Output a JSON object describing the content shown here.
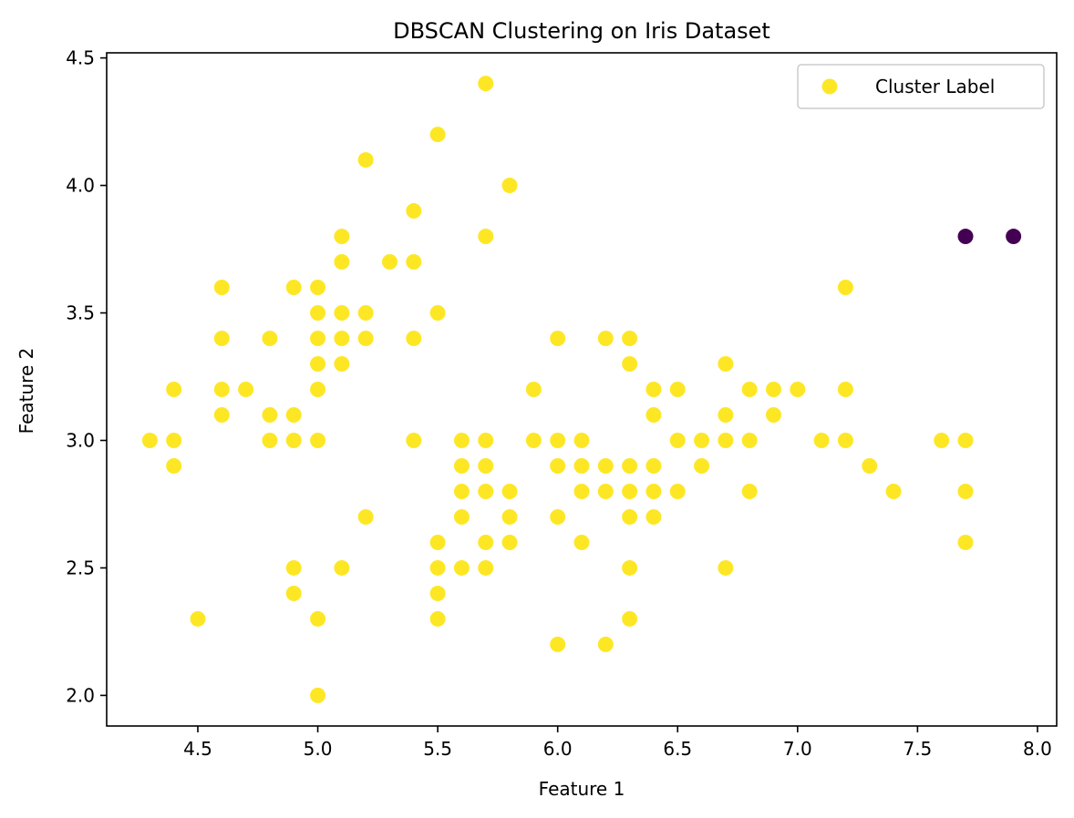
{
  "chart_data": {
    "type": "scatter",
    "title": "DBSCAN Clustering on Iris Dataset",
    "xlabel": "Feature 1",
    "ylabel": "Feature 2",
    "xlim": [
      4.12,
      8.08
    ],
    "ylim": [
      1.88,
      4.52
    ],
    "x_ticks": [
      4.5,
      5.0,
      5.5,
      6.0,
      6.5,
      7.0,
      7.5,
      8.0
    ],
    "x_tick_labels": [
      "4.5",
      "5.0",
      "5.5",
      "6.0",
      "6.5",
      "7.0",
      "7.5",
      "8.0"
    ],
    "y_ticks": [
      2.0,
      2.5,
      3.0,
      3.5,
      4.0,
      4.5
    ],
    "y_tick_labels": [
      "2.0",
      "2.5",
      "3.0",
      "3.5",
      "4.0",
      "4.5"
    ],
    "grid": false,
    "legend": {
      "placement": "upper-right",
      "entries": [
        {
          "label": "Cluster Label",
          "color": "#fde725"
        }
      ]
    },
    "cluster_colors": {
      "0": "#fde725",
      "-1": "#440154"
    },
    "points": [
      [
        4.3,
        3.0,
        0
      ],
      [
        4.4,
        3.2,
        0
      ],
      [
        4.4,
        3.0,
        0
      ],
      [
        4.4,
        2.9,
        0
      ],
      [
        4.5,
        2.3,
        0
      ],
      [
        4.6,
        3.6,
        0
      ],
      [
        4.6,
        3.4,
        0
      ],
      [
        4.6,
        3.2,
        0
      ],
      [
        4.6,
        3.1,
        0
      ],
      [
        4.7,
        3.2,
        0
      ],
      [
        4.8,
        3.4,
        0
      ],
      [
        4.8,
        3.1,
        0
      ],
      [
        4.8,
        3.0,
        0
      ],
      [
        4.9,
        3.6,
        0
      ],
      [
        4.9,
        3.1,
        0
      ],
      [
        4.9,
        3.0,
        0
      ],
      [
        4.9,
        2.5,
        0
      ],
      [
        4.9,
        2.4,
        0
      ],
      [
        5.0,
        3.6,
        0
      ],
      [
        5.0,
        3.5,
        0
      ],
      [
        5.0,
        3.4,
        0
      ],
      [
        5.0,
        3.3,
        0
      ],
      [
        5.0,
        3.2,
        0
      ],
      [
        5.0,
        3.0,
        0
      ],
      [
        5.0,
        2.3,
        0
      ],
      [
        5.0,
        2.0,
        0
      ],
      [
        5.1,
        3.8,
        0
      ],
      [
        5.1,
        3.7,
        0
      ],
      [
        5.1,
        3.5,
        0
      ],
      [
        5.1,
        3.4,
        0
      ],
      [
        5.1,
        3.3,
        0
      ],
      [
        5.1,
        2.5,
        0
      ],
      [
        5.2,
        4.1,
        0
      ],
      [
        5.2,
        3.5,
        0
      ],
      [
        5.2,
        3.4,
        0
      ],
      [
        5.2,
        2.7,
        0
      ],
      [
        5.3,
        3.7,
        0
      ],
      [
        5.4,
        3.9,
        0
      ],
      [
        5.4,
        3.7,
        0
      ],
      [
        5.4,
        3.4,
        0
      ],
      [
        5.4,
        3.0,
        0
      ],
      [
        5.5,
        4.2,
        0
      ],
      [
        5.5,
        3.5,
        0
      ],
      [
        5.5,
        2.6,
        0
      ],
      [
        5.5,
        2.5,
        0
      ],
      [
        5.5,
        2.4,
        0
      ],
      [
        5.5,
        2.3,
        0
      ],
      [
        5.6,
        3.0,
        0
      ],
      [
        5.6,
        2.9,
        0
      ],
      [
        5.6,
        2.8,
        0
      ],
      [
        5.6,
        2.7,
        0
      ],
      [
        5.6,
        2.5,
        0
      ],
      [
        5.7,
        4.4,
        0
      ],
      [
        5.7,
        3.8,
        0
      ],
      [
        5.7,
        3.0,
        0
      ],
      [
        5.7,
        2.9,
        0
      ],
      [
        5.7,
        2.8,
        0
      ],
      [
        5.7,
        2.6,
        0
      ],
      [
        5.7,
        2.5,
        0
      ],
      [
        5.8,
        4.0,
        0
      ],
      [
        5.8,
        2.8,
        0
      ],
      [
        5.8,
        2.7,
        0
      ],
      [
        5.8,
        2.6,
        0
      ],
      [
        5.9,
        3.2,
        0
      ],
      [
        5.9,
        3.0,
        0
      ],
      [
        6.0,
        3.4,
        0
      ],
      [
        6.0,
        3.0,
        0
      ],
      [
        6.0,
        2.9,
        0
      ],
      [
        6.0,
        2.7,
        0
      ],
      [
        6.0,
        2.2,
        0
      ],
      [
        6.1,
        3.0,
        0
      ],
      [
        6.1,
        2.9,
        0
      ],
      [
        6.1,
        2.8,
        0
      ],
      [
        6.1,
        2.6,
        0
      ],
      [
        6.2,
        3.4,
        0
      ],
      [
        6.2,
        2.9,
        0
      ],
      [
        6.2,
        2.8,
        0
      ],
      [
        6.2,
        2.2,
        0
      ],
      [
        6.3,
        3.4,
        0
      ],
      [
        6.3,
        3.3,
        0
      ],
      [
        6.3,
        2.9,
        0
      ],
      [
        6.3,
        2.8,
        0
      ],
      [
        6.3,
        2.7,
        0
      ],
      [
        6.3,
        2.5,
        0
      ],
      [
        6.3,
        2.3,
        0
      ],
      [
        6.4,
        3.2,
        0
      ],
      [
        6.4,
        3.1,
        0
      ],
      [
        6.4,
        2.9,
        0
      ],
      [
        6.4,
        2.8,
        0
      ],
      [
        6.4,
        2.7,
        0
      ],
      [
        6.5,
        3.2,
        0
      ],
      [
        6.5,
        3.0,
        0
      ],
      [
        6.5,
        2.8,
        0
      ],
      [
        6.6,
        3.0,
        0
      ],
      [
        6.6,
        2.9,
        0
      ],
      [
        6.7,
        3.3,
        0
      ],
      [
        6.7,
        3.1,
        0
      ],
      [
        6.7,
        3.0,
        0
      ],
      [
        6.7,
        2.5,
        0
      ],
      [
        6.8,
        3.2,
        0
      ],
      [
        6.8,
        3.0,
        0
      ],
      [
        6.8,
        2.8,
        0
      ],
      [
        6.9,
        3.2,
        0
      ],
      [
        6.9,
        3.1,
        0
      ],
      [
        7.0,
        3.2,
        0
      ],
      [
        7.1,
        3.0,
        0
      ],
      [
        7.2,
        3.6,
        0
      ],
      [
        7.2,
        3.2,
        0
      ],
      [
        7.2,
        3.0,
        0
      ],
      [
        7.3,
        2.9,
        0
      ],
      [
        7.4,
        2.8,
        0
      ],
      [
        7.6,
        3.0,
        0
      ],
      [
        7.7,
        3.8,
        -1
      ],
      [
        7.7,
        3.0,
        0
      ],
      [
        7.7,
        2.8,
        0
      ],
      [
        7.7,
        2.6,
        0
      ],
      [
        7.9,
        3.8,
        -1
      ]
    ]
  }
}
